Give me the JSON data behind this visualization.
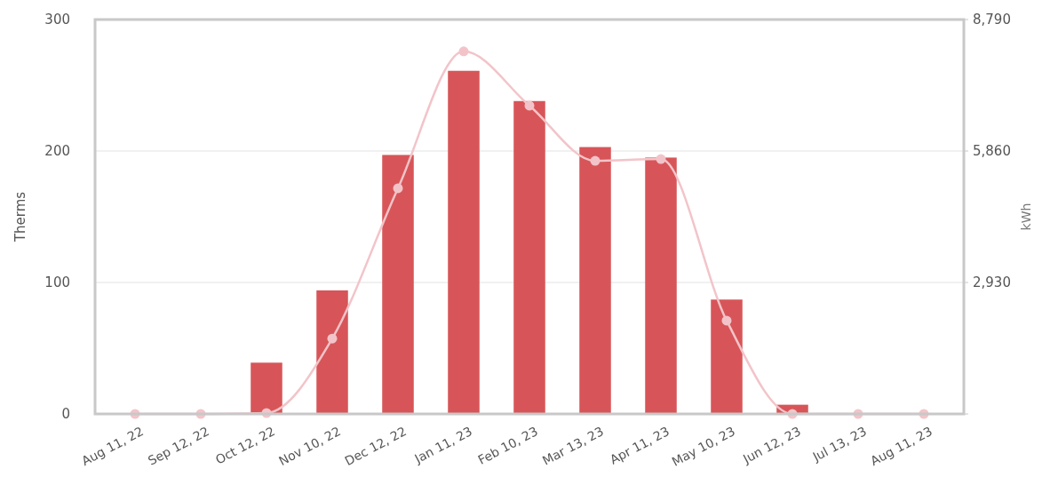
{
  "chart_data": {
    "type": "bar",
    "ylabel": "Therms",
    "y2label": "kWh",
    "categories": [
      "Aug 11, 22",
      "Sep 12, 22",
      "Oct 12, 22",
      "Nov 10, 22",
      "Dec 12, 22",
      "Jan 11, 23",
      "Feb 10, 23",
      "Mar 13, 23",
      "Apr 11, 23",
      "May 10, 23",
      "Jun 12, 23",
      "Jul 13, 23",
      "Aug 11, 23"
    ],
    "series": [
      {
        "color": "#d75558",
        "values": [
          0,
          0,
          39,
          94,
          197,
          261,
          238,
          203,
          195,
          87,
          7,
          0,
          0
        ]
      },
      {
        "type": "line",
        "axis": "y2",
        "color": "#f2c4c9",
        "values": [
          0,
          0,
          20,
          1680,
          5030,
          8080,
          6870,
          5640,
          5680,
          2080,
          0,
          0,
          0
        ]
      }
    ],
    "ylim": [
      0,
      300
    ],
    "yticks": [
      0,
      100,
      200,
      300
    ],
    "y2lim": [
      0,
      8790
    ],
    "y2ticks": [
      {
        "value": 0,
        "label": null
      },
      {
        "value": 2930,
        "label": "2,930"
      },
      {
        "value": 5860,
        "label": "5,860"
      },
      {
        "value": 8790,
        "label": "8,790"
      }
    ],
    "grid": "y",
    "marker": "circle"
  }
}
